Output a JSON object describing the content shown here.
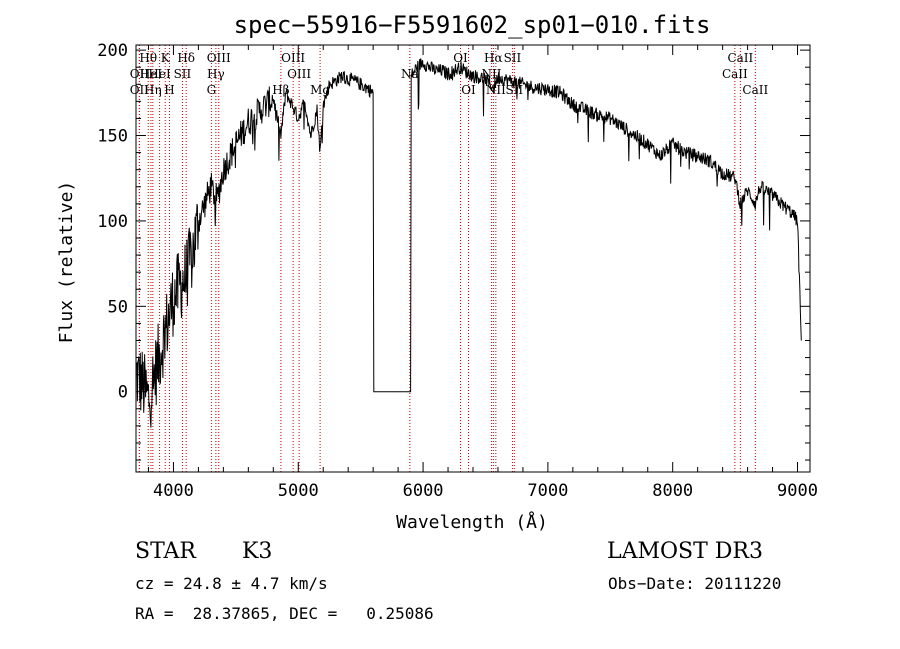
{
  "chart_data": {
    "type": "line",
    "title": "spec−55916−F5591602_sp01−010.fits",
    "xlabel": "Wavelength (Å)",
    "ylabel": "Flux (relative)",
    "xlim": [
      3700,
      9100
    ],
    "ylim": [
      -47,
      203
    ],
    "x_ticks": [
      4000,
      5000,
      6000,
      7000,
      8000,
      9000
    ],
    "y_ticks": [
      0,
      50,
      100,
      150,
      200
    ],
    "series": [
      {
        "name": "spectrum",
        "x": [
          3700,
          3750,
          3800,
          3850,
          3900,
          3950,
          4000,
          4050,
          4100,
          4150,
          4200,
          4300,
          4350,
          4400,
          4500,
          4600,
          4700,
          4800,
          4861,
          4900,
          4950,
          5000,
          5050,
          5100,
          5150,
          5175,
          5200,
          5250,
          5300,
          5350,
          5400,
          5450,
          5500,
          5550,
          5600,
          5605,
          5900,
          5905,
          5950,
          6000,
          6050,
          6100,
          6150,
          6200,
          6300,
          6350,
          6400,
          6500,
          6563,
          6600,
          6700,
          6800,
          6900,
          7000,
          7100,
          7200,
          7300,
          7400,
          7500,
          7600,
          7700,
          7800,
          7900,
          8000,
          8100,
          8200,
          8300,
          8400,
          8500,
          8542,
          8600,
          8662,
          8700,
          8800,
          8900,
          8950,
          9000,
          9030
        ],
        "y": [
          10,
          5,
          -5,
          10,
          25,
          40,
          55,
          62,
          68,
          80,
          100,
          120,
          112,
          130,
          145,
          158,
          165,
          172,
          150,
          175,
          168,
          160,
          170,
          150,
          165,
          140,
          168,
          180,
          182,
          185,
          183,
          182,
          180,
          178,
          175,
          0,
          0,
          185,
          190,
          193,
          190,
          188,
          188,
          186,
          190,
          187,
          185,
          183,
          178,
          184,
          182,
          180,
          178,
          177,
          175,
          168,
          165,
          162,
          160,
          155,
          150,
          145,
          138,
          145,
          140,
          138,
          135,
          128,
          125,
          110,
          118,
          110,
          120,
          115,
          108,
          105,
          100,
          30
        ]
      }
    ],
    "line_marks": [
      {
        "wavelength": 3727,
        "label": "OII",
        "tier": 1
      },
      {
        "wavelength": 3727,
        "label": "OII",
        "tier": 2
      },
      {
        "wavelength": 3798,
        "label": "Hθ",
        "tier": 0
      },
      {
        "wavelength": 3820,
        "label": "HeI",
        "tier": 1
      },
      {
        "wavelength": 3835,
        "label": "Hη",
        "tier": 2
      },
      {
        "wavelength": 3889,
        "label": "HeI",
        "tier": 1
      },
      {
        "wavelength": 3934,
        "label": "K",
        "tier": 0
      },
      {
        "wavelength": 3968,
        "label": "H",
        "tier": 2
      },
      {
        "wavelength": 4072,
        "label": "SII",
        "tier": 1
      },
      {
        "wavelength": 4102,
        "label": "Hδ",
        "tier": 0
      },
      {
        "wavelength": 4304,
        "label": "G",
        "tier": 2
      },
      {
        "wavelength": 4340,
        "label": "Hγ",
        "tier": 1
      },
      {
        "wavelength": 4363,
        "label": "OIII",
        "tier": 0
      },
      {
        "wavelength": 4861,
        "label": "Hβ",
        "tier": 2
      },
      {
        "wavelength": 4959,
        "label": "OIII",
        "tier": 0
      },
      {
        "wavelength": 5007,
        "label": "OIII",
        "tier": 1
      },
      {
        "wavelength": 5175,
        "label": "Mg",
        "tier": 2
      },
      {
        "wavelength": 5894,
        "label": "Na",
        "tier": 1
      },
      {
        "wavelength": 6300,
        "label": "OI",
        "tier": 0
      },
      {
        "wavelength": 6364,
        "label": "OI",
        "tier": 2
      },
      {
        "wavelength": 6548,
        "label": "NII",
        "tier": 1
      },
      {
        "wavelength": 6563,
        "label": "Hα",
        "tier": 0
      },
      {
        "wavelength": 6583,
        "label": "NII",
        "tier": 2
      },
      {
        "wavelength": 6716,
        "label": "SII",
        "tier": 0
      },
      {
        "wavelength": 6731,
        "label": "SII",
        "tier": 2
      },
      {
        "wavelength": 8498,
        "label": "CaII",
        "tier": 1
      },
      {
        "wavelength": 8542,
        "label": "CaII",
        "tier": 0
      },
      {
        "wavelength": 8662,
        "label": "CaII",
        "tier": 2
      }
    ],
    "line_mark_color": "#cc0000",
    "line_color": "#000000"
  },
  "info": {
    "object_class": "STAR",
    "subclass": "K3",
    "survey": "LAMOST DR3",
    "cz": "cz = 24.8 ± 4.7 km/s",
    "obs_date": "Obs−Date: 20111220",
    "coords": "RA =  28.37865, DEC =   0.25086"
  }
}
